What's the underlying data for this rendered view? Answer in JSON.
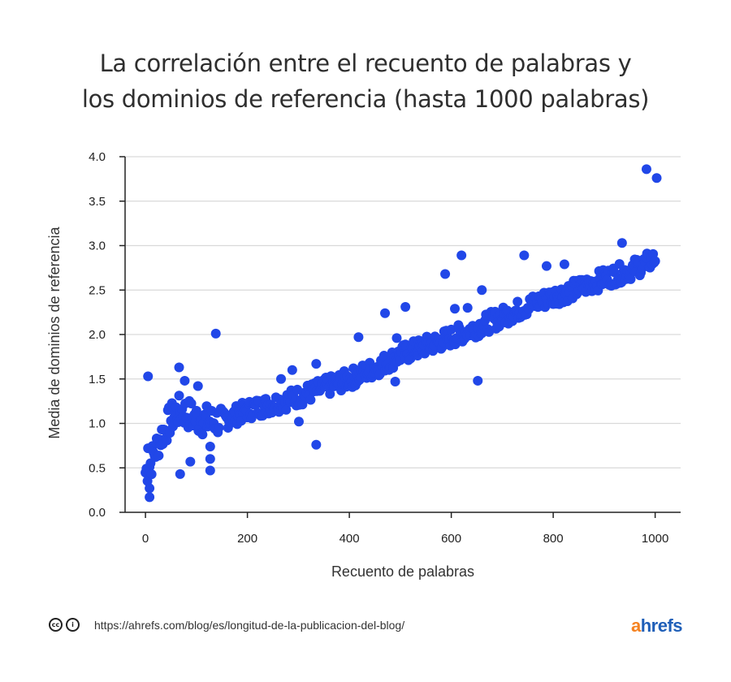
{
  "title_lines": [
    "La correlación entre el recuento de palabras y",
    "los dominios de referencia (hasta 1000 palabras)"
  ],
  "footer": {
    "url": "https://ahrefs.com/blog/es/longitud-de-la-publicacion-del-blog/",
    "cc_icon": "creative-commons-icon",
    "by_icon": "attribution-icon",
    "logo_prefix": "a",
    "logo_rest": "hrefs"
  },
  "colors": {
    "points": "#2147e8",
    "grid": "#d9d9d9",
    "axis": "#222222"
  },
  "chart_data": {
    "type": "scatter",
    "title": "La correlación entre el recuento de palabras y los dominios de referencia (hasta 1000 palabras)",
    "xlabel": "Recuento de palabras",
    "ylabel": "Media de dominios de referencia",
    "xlim": [
      -40,
      1050
    ],
    "ylim": [
      0,
      4.0
    ],
    "xticks": [
      0,
      200,
      400,
      600,
      800,
      1000
    ],
    "yticks": [
      0.0,
      0.5,
      1.0,
      1.5,
      2.0,
      2.5,
      3.0,
      3.5,
      4.0
    ],
    "xtick_labels": [
      "0",
      "200",
      "400",
      "600",
      "800",
      "1000"
    ],
    "ytick_labels": [
      "0.0",
      "0.5",
      "1.0",
      "1.5",
      "2.0",
      "2.5",
      "3.0",
      "3.5",
      "4.0"
    ],
    "grid": "horizontal",
    "trend": {
      "description": "Dense band of points roughly one per word count from 0 to 1000",
      "band_start": [
        [
          0,
          0.45
        ],
        [
          10,
          0.55
        ],
        [
          20,
          0.7
        ],
        [
          30,
          0.85
        ],
        [
          40,
          0.95
        ],
        [
          50,
          1.05
        ],
        [
          60,
          1.12
        ],
        [
          70,
          1.15
        ],
        [
          80,
          1.12
        ],
        [
          100,
          1.05
        ],
        [
          130,
          1.02
        ],
        [
          160,
          1.05
        ],
        [
          200,
          1.15
        ],
        [
          250,
          1.22
        ],
        [
          300,
          1.3
        ],
        [
          350,
          1.4
        ],
        [
          400,
          1.5
        ],
        [
          450,
          1.62
        ],
        [
          500,
          1.77
        ],
        [
          550,
          1.87
        ],
        [
          600,
          1.97
        ],
        [
          650,
          2.08
        ],
        [
          700,
          2.2
        ],
        [
          750,
          2.32
        ],
        [
          800,
          2.43
        ],
        [
          850,
          2.52
        ],
        [
          900,
          2.63
        ],
        [
          950,
          2.72
        ],
        [
          1000,
          2.85
        ]
      ]
    },
    "outliers": [
      {
        "x": 5,
        "y": 1.53
      },
      {
        "x": 5,
        "y": 0.72
      },
      {
        "x": 8,
        "y": 0.27
      },
      {
        "x": 8,
        "y": 0.17
      },
      {
        "x": 66,
        "y": 1.63
      },
      {
        "x": 68,
        "y": 0.43
      },
      {
        "x": 77,
        "y": 1.48
      },
      {
        "x": 88,
        "y": 0.57
      },
      {
        "x": 103,
        "y": 1.42
      },
      {
        "x": 127,
        "y": 0.47
      },
      {
        "x": 127,
        "y": 0.6
      },
      {
        "x": 127,
        "y": 0.74
      },
      {
        "x": 138,
        "y": 2.01
      },
      {
        "x": 266,
        "y": 1.5
      },
      {
        "x": 288,
        "y": 1.6
      },
      {
        "x": 301,
        "y": 1.02
      },
      {
        "x": 335,
        "y": 0.76
      },
      {
        "x": 335,
        "y": 1.67
      },
      {
        "x": 418,
        "y": 1.97
      },
      {
        "x": 470,
        "y": 2.24
      },
      {
        "x": 490,
        "y": 1.47
      },
      {
        "x": 493,
        "y": 1.96
      },
      {
        "x": 510,
        "y": 2.31
      },
      {
        "x": 588,
        "y": 2.68
      },
      {
        "x": 607,
        "y": 2.29
      },
      {
        "x": 620,
        "y": 2.89
      },
      {
        "x": 632,
        "y": 2.3
      },
      {
        "x": 652,
        "y": 1.48
      },
      {
        "x": 660,
        "y": 2.5
      },
      {
        "x": 743,
        "y": 2.89
      },
      {
        "x": 787,
        "y": 2.77
      },
      {
        "x": 822,
        "y": 2.79
      },
      {
        "x": 935,
        "y": 3.03
      },
      {
        "x": 983,
        "y": 3.86
      },
      {
        "x": 1003,
        "y": 3.76
      }
    ]
  }
}
